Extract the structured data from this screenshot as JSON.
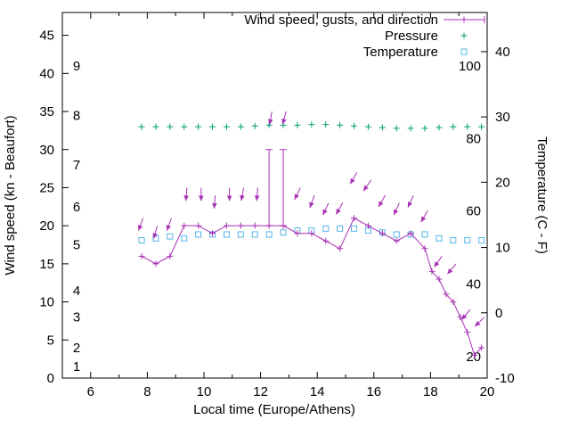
{
  "chart_data": {
    "type": "line",
    "title": "",
    "xlabel": "Local time (Europe/Athens)",
    "ylabel_left": "Wind speed (kn - Beaufort)",
    "ylabel_right": "Temperature (C - F)",
    "xlim": [
      5,
      20
    ],
    "ylim_left": [
      0,
      48
    ],
    "ylim_right": [
      -10,
      46
    ],
    "x_major_ticks": [
      6,
      8,
      10,
      12,
      14,
      16,
      18,
      20
    ],
    "x_minor_ticks": [
      7,
      9,
      11,
      13,
      15,
      17,
      19
    ],
    "y_left_ticks": [
      0,
      5,
      10,
      15,
      20,
      25,
      30,
      35,
      40,
      45
    ],
    "y_right_ticks": [
      -10,
      0,
      10,
      20,
      30,
      40
    ],
    "beaufort_scale_labels": [
      {
        "label": "1",
        "kn": 1.5
      },
      {
        "label": "2",
        "kn": 4
      },
      {
        "label": "3",
        "kn": 8
      },
      {
        "label": "4",
        "kn": 11.5
      },
      {
        "label": "5",
        "kn": 17.5
      },
      {
        "label": "6",
        "kn": 22.5
      },
      {
        "label": "7",
        "kn": 28
      },
      {
        "label": "8",
        "kn": 34.5
      },
      {
        "label": "9",
        "kn": 41
      }
    ],
    "fahrenheit_scale_labels": [
      {
        "label": "20",
        "celsius": -6.7
      },
      {
        "label": "40",
        "celsius": 4.4
      },
      {
        "label": "60",
        "celsius": 15.6
      },
      {
        "label": "80",
        "celsius": 26.7
      },
      {
        "label": "100",
        "celsius": 37.8
      }
    ],
    "wind": {
      "label": "Wind speed, gusts, and direction",
      "color": "#a832b4",
      "time": [
        7.8,
        8.3,
        8.8,
        9.3,
        9.8,
        10.3,
        10.8,
        11.3,
        11.8,
        12.3,
        12.8,
        13.3,
        13.8,
        14.3,
        14.8,
        15.3,
        15.8,
        16.3,
        16.8,
        17.3,
        17.8,
        18.05,
        18.3,
        18.55,
        18.8,
        19.05,
        19.3,
        19.55,
        19.8
      ],
      "speed_kn": [
        16,
        15,
        16,
        20,
        20,
        19,
        20,
        20,
        20,
        20,
        20,
        19,
        19,
        18,
        17,
        21,
        20,
        19,
        18,
        19,
        17,
        14,
        13,
        11,
        10,
        8,
        6,
        3,
        4
      ],
      "gust_kn": [
        16,
        15,
        16,
        20,
        20,
        19,
        20,
        20,
        20,
        30,
        30,
        19,
        19,
        18,
        17,
        21,
        20,
        19,
        18,
        19,
        17,
        14,
        13,
        11,
        10,
        8,
        6,
        3,
        4
      ],
      "arrow_time": [
        7.85,
        8.35,
        8.85,
        9.4,
        9.9,
        10.4,
        10.9,
        11.4,
        11.9,
        12.4,
        12.9,
        13.4,
        13.9,
        14.4,
        14.9,
        15.4,
        15.9,
        16.4,
        16.9,
        17.4,
        17.9,
        18.4,
        18.9,
        19.4,
        19.9
      ],
      "arrow_kn": [
        21,
        20,
        21,
        25,
        25,
        24,
        25,
        25,
        25,
        35,
        35,
        25,
        24,
        23,
        23,
        27,
        26,
        24,
        23,
        24,
        22,
        16,
        15,
        9,
        8
      ],
      "arrow_angle_deg": [
        200,
        195,
        200,
        185,
        180,
        185,
        180,
        190,
        185,
        190,
        195,
        205,
        200,
        205,
        210,
        210,
        215,
        210,
        205,
        205,
        210,
        215,
        220,
        220,
        225
      ]
    },
    "pressure": {
      "label": "Pressure",
      "color": "#009e73",
      "time": [
        7.8,
        8.3,
        8.8,
        9.3,
        9.8,
        10.3,
        10.8,
        11.3,
        11.8,
        12.3,
        12.8,
        13.3,
        13.8,
        14.3,
        14.8,
        15.3,
        15.8,
        16.3,
        16.8,
        17.3,
        17.8,
        18.3,
        18.8,
        19.3,
        19.8
      ],
      "y_on_left_axis": [
        33,
        33,
        33,
        33,
        33,
        33,
        33,
        33,
        33.1,
        33.2,
        33.2,
        33.2,
        33.3,
        33.3,
        33.2,
        33.1,
        33,
        32.9,
        32.8,
        32.8,
        32.8,
        32.9,
        33,
        33,
        33
      ]
    },
    "temperature": {
      "label": "Temperature",
      "color": "#56b4e9",
      "time": [
        7.8,
        8.3,
        8.8,
        9.3,
        9.8,
        10.3,
        10.8,
        11.3,
        11.8,
        12.3,
        12.8,
        13.3,
        13.8,
        14.3,
        14.8,
        15.3,
        15.8,
        16.3,
        16.8,
        17.3,
        17.8,
        18.3,
        18.8,
        19.3,
        19.8
      ],
      "celsius": [
        11.1,
        11.4,
        11.7,
        11.4,
        12,
        12,
        12,
        12,
        12,
        12,
        12.3,
        12.6,
        12.6,
        12.9,
        12.9,
        12.9,
        12.6,
        12.3,
        12,
        12,
        12,
        11.4,
        11.1,
        11.1,
        11.1
      ]
    },
    "legend": {
      "position": "top-right",
      "entries": [
        "wind",
        "pressure",
        "temperature"
      ]
    }
  }
}
